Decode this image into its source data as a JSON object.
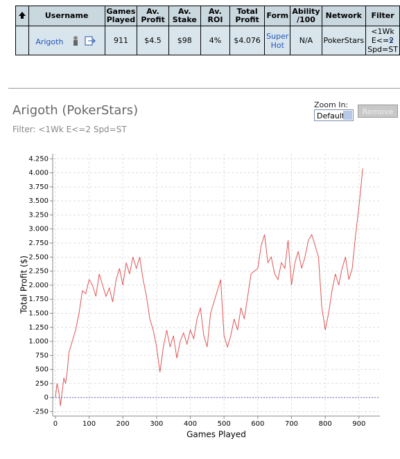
{
  "table": {
    "headers": [
      "Username",
      "Games Played",
      "Av. Profit",
      "Av. Stake",
      "Av. ROI",
      "Total Profit",
      "Form",
      "Ability /100",
      "Network",
      "Filter"
    ],
    "rows": [
      [
        "Arigoth",
        "911",
        "$4.5",
        "$98",
        "4%",
        "$4.076",
        "Super Hot",
        "N/A",
        "PokerStars",
        "<1Wk E<=2 Spd=ST"
      ]
    ],
    "remove_link": "x"
  },
  "title": "Arigoth (PokerStars)",
  "filter": "Filter: <1Wk E<=2 Spd=ST",
  "zoom_label": "Zoom In:",
  "zoom_value": "Default",
  "remove_button": "Remove",
  "chart_data": {
    "type": "line",
    "xlabel": "Games Played",
    "ylabel": "Total Profit ($)",
    "color": "#e05555",
    "x": [
      0,
      5,
      10,
      15,
      20,
      25,
      30,
      35,
      40,
      50,
      60,
      70,
      80,
      90,
      100,
      110,
      120,
      130,
      140,
      150,
      160,
      170,
      180,
      190,
      200,
      210,
      220,
      230,
      240,
      250,
      260,
      270,
      280,
      290,
      300,
      310,
      320,
      330,
      340,
      350,
      360,
      370,
      380,
      390,
      400,
      410,
      420,
      430,
      440,
      450,
      460,
      470,
      480,
      490,
      500,
      510,
      520,
      530,
      540,
      550,
      560,
      570,
      580,
      590,
      600,
      610,
      620,
      630,
      640,
      650,
      660,
      670,
      680,
      690,
      700,
      710,
      720,
      730,
      740,
      750,
      760,
      770,
      780,
      790,
      800,
      810,
      820,
      830,
      840,
      850,
      860,
      870,
      880,
      890,
      900,
      905,
      911
    ],
    "values": [
      0,
      250,
      100,
      -150,
      100,
      350,
      250,
      450,
      800,
      1000,
      1200,
      1500,
      1900,
      1850,
      2100,
      2000,
      1800,
      2200,
      2000,
      1800,
      1950,
      1700,
      2100,
      2300,
      2000,
      2400,
      2200,
      2500,
      2300,
      2500,
      2100,
      1800,
      1400,
      1200,
      900,
      450,
      900,
      1200,
      900,
      1100,
      700,
      1000,
      1150,
      950,
      1200,
      1050,
      1400,
      1600,
      1100,
      900,
      1500,
      1700,
      1900,
      2100,
      1100,
      900,
      1100,
      1400,
      1200,
      1600,
      1400,
      1800,
      2200,
      2250,
      2300,
      2700,
      2900,
      2400,
      2500,
      2200,
      2100,
      2400,
      2300,
      2800,
      2000,
      2400,
      2600,
      2300,
      2500,
      2800,
      2900,
      2700,
      2500,
      1600,
      1200,
      1500,
      1900,
      2200,
      2000,
      2300,
      2500,
      2100,
      2300,
      2900,
      3400,
      3700,
      4076
    ],
    "xlim": [
      -8,
      962
    ],
    "ylim": [
      -330,
      4340
    ],
    "xticks": [
      0,
      100,
      200,
      300,
      400,
      500,
      600,
      700,
      800,
      900
    ],
    "yticks": [
      {
        "value": -250,
        "label": "-250"
      },
      0,
      250,
      500,
      750,
      {
        "value": 1000,
        "label": "1.000"
      },
      {
        "value": 1250,
        "label": "1.250"
      },
      {
        "value": 1500,
        "label": "1.500"
      },
      {
        "value": 1750,
        "label": "1.750"
      },
      {
        "value": 2000,
        "label": "2.000"
      },
      {
        "value": 2250,
        "label": "2.250"
      },
      {
        "value": 2500,
        "label": "2.500"
      },
      {
        "value": 2750,
        "label": "2.750"
      },
      {
        "value": 3000,
        "label": "3.000"
      },
      {
        "value": 3250,
        "label": "3.250"
      },
      {
        "value": 3500,
        "label": "3.500"
      },
      {
        "value": 3750,
        "label": "3.750"
      },
      {
        "value": 4000,
        "label": "4.000"
      },
      {
        "value": 4250,
        "label": "4.250"
      }
    ],
    "grid": true
  }
}
